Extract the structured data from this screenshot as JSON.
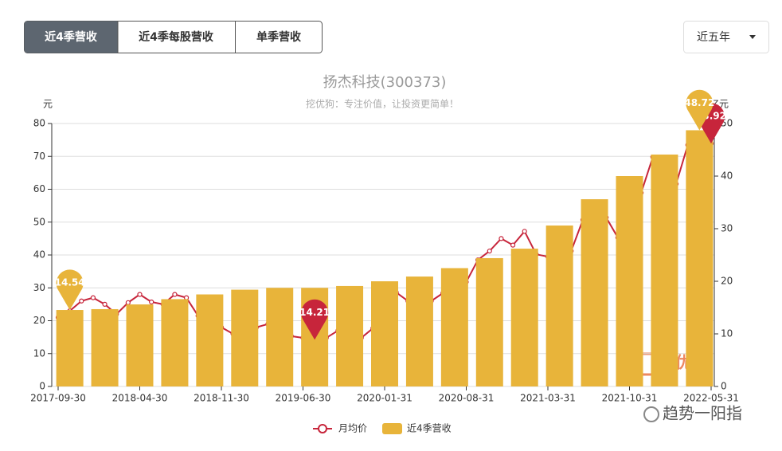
{
  "tabs": [
    "近4季营收",
    "近4季每股营收",
    "单季营收"
  ],
  "period": "近五年",
  "watermark": "挖优狗",
  "signature": "趋势一阳指",
  "chart_data": {
    "type": "bar-line",
    "title": "扬杰科技(300373)",
    "subtitle": "挖优狗：专注价值，让投资更简单！",
    "y_label": "元",
    "y2_label": "亿元",
    "categories": [
      "2017-09-30",
      null,
      null,
      null,
      null,
      null,
      null,
      "2018-04-30",
      null,
      null,
      null,
      null,
      null,
      null,
      "2018-11-30",
      null,
      null,
      null,
      null,
      null,
      null,
      "2019-06-30",
      null,
      null,
      null,
      null,
      null,
      null,
      "2020-01-31",
      null,
      null,
      null,
      null,
      null,
      null,
      "2020-08-31",
      null,
      null,
      null,
      null,
      null,
      null,
      "2021-03-31",
      null,
      null,
      null,
      null,
      null,
      null,
      "2021-10-31",
      null,
      null,
      null,
      null,
      null,
      null,
      "2022-05-31"
    ],
    "ylim": [
      0,
      80
    ],
    "yticks": [
      0,
      10,
      20,
      30,
      40,
      50,
      60,
      70,
      80
    ],
    "y2lim": [
      0,
      50
    ],
    "y2ticks": [
      0,
      10,
      20,
      30,
      40,
      50
    ],
    "grid": true,
    "series": [
      {
        "name": "月均价",
        "type": "line",
        "color": "#c7253b",
        "values": [
          21,
          23,
          26,
          27,
          25,
          22,
          25.5,
          28,
          25.7,
          25,
          28,
          27,
          21.5,
          17,
          18,
          16,
          14.5,
          18,
          19,
          17.5,
          15.3,
          14.8,
          14.21,
          14.8,
          17,
          15,
          14.8,
          17.7,
          19.6,
          28.6,
          26,
          23.7,
          26,
          28.4,
          33.2,
          31.8,
          38.5,
          41.2,
          45,
          43,
          47.2,
          40.2,
          39.5,
          41.7,
          41.2,
          50.7,
          55.5,
          51.4,
          45.3,
          50.2,
          58.9,
          69.8,
          62.8,
          61.6,
          73.5,
          66.2,
          73.92
        ]
      },
      {
        "name": "近4季营收",
        "type": "bar",
        "axis": "y2",
        "color": "#e8b43a",
        "values": [
          null,
          14.54,
          null,
          null,
          14.7,
          null,
          null,
          15.6,
          null,
          null,
          16.6,
          null,
          null,
          17.5,
          null,
          null,
          18.4,
          null,
          null,
          18.75,
          null,
          null,
          18.75,
          null,
          null,
          19.1,
          null,
          null,
          20,
          null,
          null,
          20.9,
          null,
          null,
          22.5,
          null,
          null,
          24.4,
          null,
          null,
          26.2,
          null,
          null,
          30.6,
          null,
          null,
          35.6,
          null,
          null,
          40,
          null,
          null,
          44.1,
          null,
          null,
          48.72,
          null
        ]
      }
    ]
  }
}
